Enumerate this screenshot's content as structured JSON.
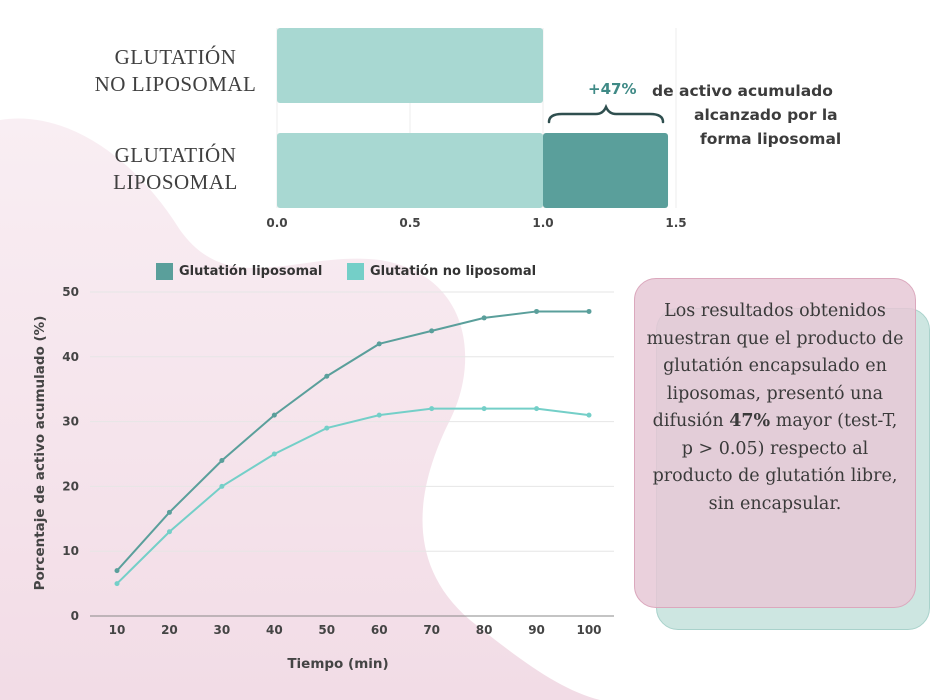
{
  "colors": {
    "liposomal": "#5a9f9b",
    "no_liposomal": "#74cfc8",
    "bar_light": "#a8d8d2",
    "bar_dark": "#5a9f9b",
    "annotation_accent": "#3f8a86",
    "bg_pink": "#f4e4ec",
    "box_pink": "#e8c8d6",
    "box_teal": "#cde6e1"
  },
  "bar_chart": {
    "bar_labels": [
      {
        "line1": "GLUTATIÓN",
        "line2": "NO LIPOSOMAL"
      },
      {
        "line1": "GLUTATIÓN",
        "line2": "LIPOSOMAL"
      }
    ],
    "annotation": {
      "percent": "+47%",
      "line1": "de activo acumulado",
      "line2": "alcanzado por la",
      "line3": "forma liposomal"
    }
  },
  "line_chart": {
    "legend": [
      "Glutatión liposomal",
      "Glutatión no liposomal"
    ],
    "xlabel": "Tiempo (min)",
    "ylabel": "Porcentaje de activo acumulado (%)"
  },
  "chart_data": [
    {
      "type": "bar",
      "orientation": "horizontal",
      "categories": [
        "GLUTATIÓN NO LIPOSOMAL",
        "GLUTATIÓN LIPOSOMAL"
      ],
      "values": [
        1.0,
        1.47
      ],
      "stacked_segments": [
        [
          1.0,
          0.0
        ],
        [
          1.0,
          0.47
        ]
      ],
      "xticks": [
        "0.0",
        "0.5",
        "1.0",
        "1.5"
      ],
      "xlim": [
        0,
        1.5
      ],
      "annotation": "+47% de activo acumulado alcanzado por la forma liposomal"
    },
    {
      "type": "line",
      "x": [
        10,
        20,
        30,
        40,
        50,
        60,
        70,
        80,
        90,
        100
      ],
      "series": [
        {
          "name": "Glutatión liposomal",
          "values": [
            7,
            16,
            24,
            31,
            37,
            42,
            44,
            46,
            47,
            47
          ]
        },
        {
          "name": "Glutatión no liposomal",
          "values": [
            5,
            13,
            20,
            25,
            29,
            31,
            32,
            32,
            32,
            31
          ]
        }
      ],
      "xlabel": "Tiempo (min)",
      "ylabel": "Porcentaje de activo acumulado (%)",
      "ylim": [
        0,
        50
      ],
      "yticks": [
        0,
        10,
        20,
        30,
        40,
        50
      ],
      "grid": true,
      "legend_position": "top"
    }
  ],
  "summary_box": {
    "text_before": "Los resultados obtenidos muestran que el producto de glutatión encapsulado en liposomas, presentó una difusión",
    "highlight": "47%",
    "text_after": "mayor (test-T, p > 0.05) respecto al producto de glutatión libre, sin encapsular."
  }
}
